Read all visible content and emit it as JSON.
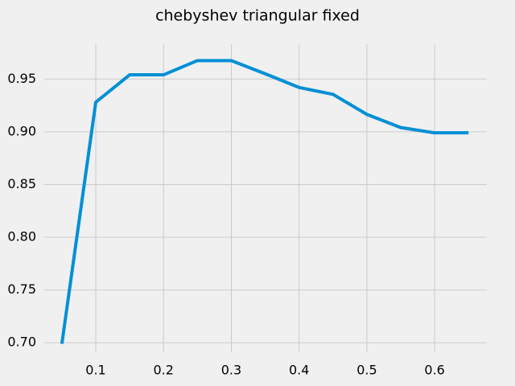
{
  "chart_data": {
    "type": "line",
    "title": "chebyshev triangular fixed",
    "x": [
      0.05,
      0.1,
      0.15,
      0.2,
      0.25,
      0.3,
      0.35,
      0.4,
      0.45,
      0.5,
      0.55,
      0.6,
      0.65
    ],
    "series": [
      {
        "color": "#008fd5",
        "values": [
          0.699,
          0.928,
          0.954,
          0.954,
          0.9675,
          0.9675,
          0.955,
          0.942,
          0.9355,
          0.9165,
          0.904,
          0.899,
          0.899
        ]
      }
    ],
    "xlim": [
      0.024,
      0.677
    ],
    "ylim": [
      0.691,
      0.983
    ],
    "xticks": [
      0.1,
      0.2,
      0.3,
      0.4,
      0.5,
      0.6
    ],
    "yticks": [
      {
        "value": 0.7,
        "label": "0.70"
      },
      0.75,
      {
        "value": 0.8,
        "label": "0.80"
      },
      0.85,
      {
        "value": 0.9,
        "label": "0.90"
      },
      0.95
    ],
    "grid": true
  }
}
